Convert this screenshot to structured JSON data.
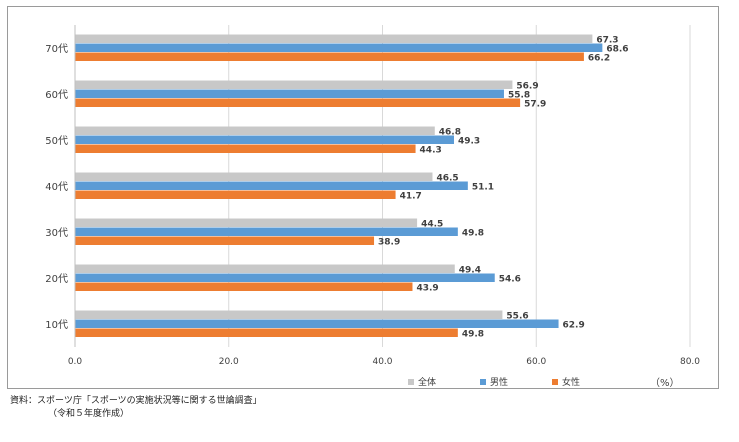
{
  "chart_data": {
    "type": "bar",
    "orientation": "horizontal",
    "categories": [
      "70代",
      "60代",
      "50代",
      "40代",
      "30代",
      "20代",
      "10代"
    ],
    "series": [
      {
        "name": "全体",
        "color": "#c8c8c8",
        "values": [
          67.3,
          56.9,
          46.8,
          46.5,
          44.5,
          49.4,
          55.6
        ]
      },
      {
        "name": "男性",
        "color": "#5b9bd5",
        "values": [
          68.6,
          55.8,
          49.3,
          51.1,
          49.8,
          54.6,
          62.9
        ]
      },
      {
        "name": "女性",
        "color": "#ed7d31",
        "values": [
          66.2,
          57.9,
          44.3,
          41.7,
          38.9,
          43.9,
          49.8
        ]
      }
    ],
    "xlim": [
      0,
      80
    ],
    "xticks": [
      "0.0",
      "20.0",
      "40.0",
      "60.0",
      "80.0"
    ],
    "unit": "（%）",
    "grid": true,
    "legend_position": "bottom-right"
  },
  "source": {
    "line1": "資料：スポーツ庁「スポーツの実施状況等に関する世論調査」",
    "line2": "（令和５年度作成）"
  }
}
